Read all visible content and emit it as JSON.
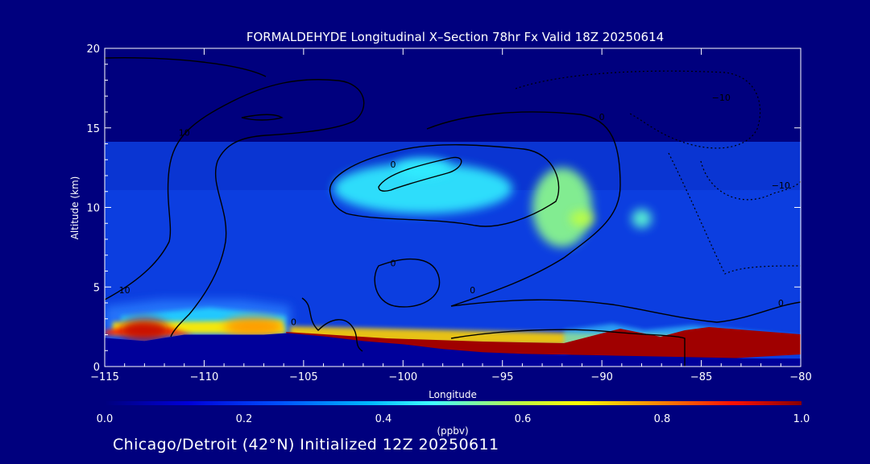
{
  "chart_data": {
    "type": "heatmap",
    "title": "FORMALDEHYDE Longitudinal X–Section 78hr  Fx Valid 18Z 20250614",
    "xlabel": "Longitude",
    "ylabel": "Altitude (km)",
    "xlim": [
      -115,
      -80
    ],
    "ylim": [
      0,
      20
    ],
    "x_ticks": [
      -115,
      -110,
      -105,
      -100,
      -95,
      -90,
      -85,
      -80
    ],
    "x_tick_labels": [
      "−115",
      "−110",
      "−105",
      "−100",
      "−95",
      "−90",
      "−85",
      "−80"
    ],
    "y_ticks": [
      0,
      5,
      10,
      15,
      20
    ],
    "y_tick_labels": [
      "0",
      "5",
      "10",
      "15",
      "20"
    ],
    "colorbar": {
      "label": "(ppbv)",
      "range": [
        0.0,
        1.0
      ],
      "ticks": [
        0.0,
        0.2,
        0.4,
        0.6,
        0.8,
        1.0
      ],
      "tick_labels": [
        "0.0",
        "0.2",
        "0.4",
        "0.6",
        "0.8",
        "1.0"
      ]
    },
    "colors": {
      "background": "#00007e",
      "terrain": "#00009a",
      "contour": "#000000"
    },
    "terrain_km": [
      [
        -115,
        1.8
      ],
      [
        -113,
        1.6
      ],
      [
        -111,
        2.0
      ],
      [
        -109,
        2.0
      ],
      [
        -107,
        2.0
      ],
      [
        -105.8,
        2.1
      ],
      [
        -104,
        1.9
      ],
      [
        -102,
        1.6
      ],
      [
        -100,
        1.4
      ],
      [
        -98,
        1.1
      ],
      [
        -96,
        0.9
      ],
      [
        -94,
        0.8
      ],
      [
        -92,
        0.75
      ],
      [
        -90,
        0.7
      ],
      [
        -88,
        0.65
      ],
      [
        -86,
        0.6
      ],
      [
        -84,
        0.55
      ],
      [
        -82,
        0.5
      ],
      [
        -80,
        0.5
      ]
    ],
    "hotspots": [
      {
        "lon": -113,
        "alt": 2.3,
        "value": 0.95,
        "rx": 1.2,
        "ry": 0.7
      },
      {
        "lon": -107.5,
        "alt": 2.5,
        "value": 0.78,
        "rx": 1.5,
        "ry": 0.6
      },
      {
        "lon": -99,
        "alt": 11.2,
        "value": 0.45,
        "rx": 4.5,
        "ry": 1.6
      },
      {
        "lon": -92,
        "alt": 10.0,
        "value": 0.55,
        "rx": 1.5,
        "ry": 2.5
      },
      {
        "lon": -91,
        "alt": 9.3,
        "value": 0.6,
        "rx": 0.6,
        "ry": 0.5
      },
      {
        "lon": -88,
        "alt": 9.3,
        "value": 0.5,
        "rx": 0.5,
        "ry": 0.6
      },
      {
        "lon": -99,
        "alt": 12.5,
        "value": 0.45,
        "rx": 1.4,
        "ry": 0.6
      }
    ],
    "contour_labels": [
      {
        "text": "10",
        "lon": -111,
        "alt": 14.5
      },
      {
        "text": "10",
        "lon": -114,
        "alt": 4.6
      },
      {
        "text": "0",
        "lon": -100.5,
        "alt": 12.5
      },
      {
        "text": "0",
        "lon": -90,
        "alt": 15.5
      },
      {
        "text": "0",
        "lon": -100.5,
        "alt": 6.3
      },
      {
        "text": "0",
        "lon": -96.5,
        "alt": 4.6
      },
      {
        "text": "0",
        "lon": -105.5,
        "alt": 2.6
      },
      {
        "text": "0",
        "lon": -81,
        "alt": 3.8
      },
      {
        "text": "−10",
        "lon": -84,
        "alt": 16.7
      },
      {
        "text": "−10",
        "lon": -81,
        "alt": 11.2
      }
    ]
  },
  "subtitle": "Chicago/Detroit (42°N) Initialized 12Z 20250611"
}
